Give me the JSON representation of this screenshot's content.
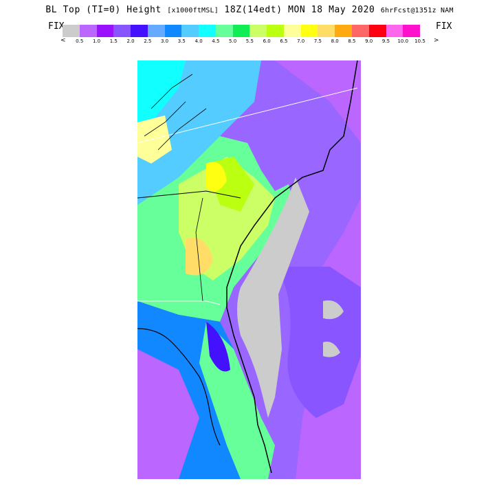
{
  "header": {
    "main_title": "BL Top (TI=0) Height",
    "units": "[x1000ftMSL]",
    "valid_time": "18Z(14edt) MON 18 May 2020",
    "forecast": "6hrFcst@1351z NAM"
  },
  "fix_left": "FIX",
  "fix_right": "FIX",
  "legend": {
    "arrow_left": "<",
    "arrow_right": ">",
    "colors": [
      "#cccccc",
      "#bb66ff",
      "#9911ff",
      "#8855ff",
      "#4411ff",
      "#66aaff",
      "#1188ff",
      "#55ccff",
      "#11ffff",
      "#66ff99",
      "#11ee55",
      "#ccff66",
      "#bbff11",
      "#ffff99",
      "#ffff11",
      "#ffdd66",
      "#ffaa11",
      "#ff6666",
      "#ff0011",
      "#ff66ee",
      "#ff11cc"
    ],
    "labels": [
      "0.5",
      "1.0",
      "1.5",
      "2.0",
      "2.5",
      "3.0",
      "3.5",
      "4.0",
      "4.5",
      "5.0",
      "5.5",
      "6.0",
      "6.5",
      "7.0",
      "7.5",
      "8.0",
      "8.5",
      "9.0",
      "9.5",
      "10.0",
      "10.5"
    ]
  }
}
